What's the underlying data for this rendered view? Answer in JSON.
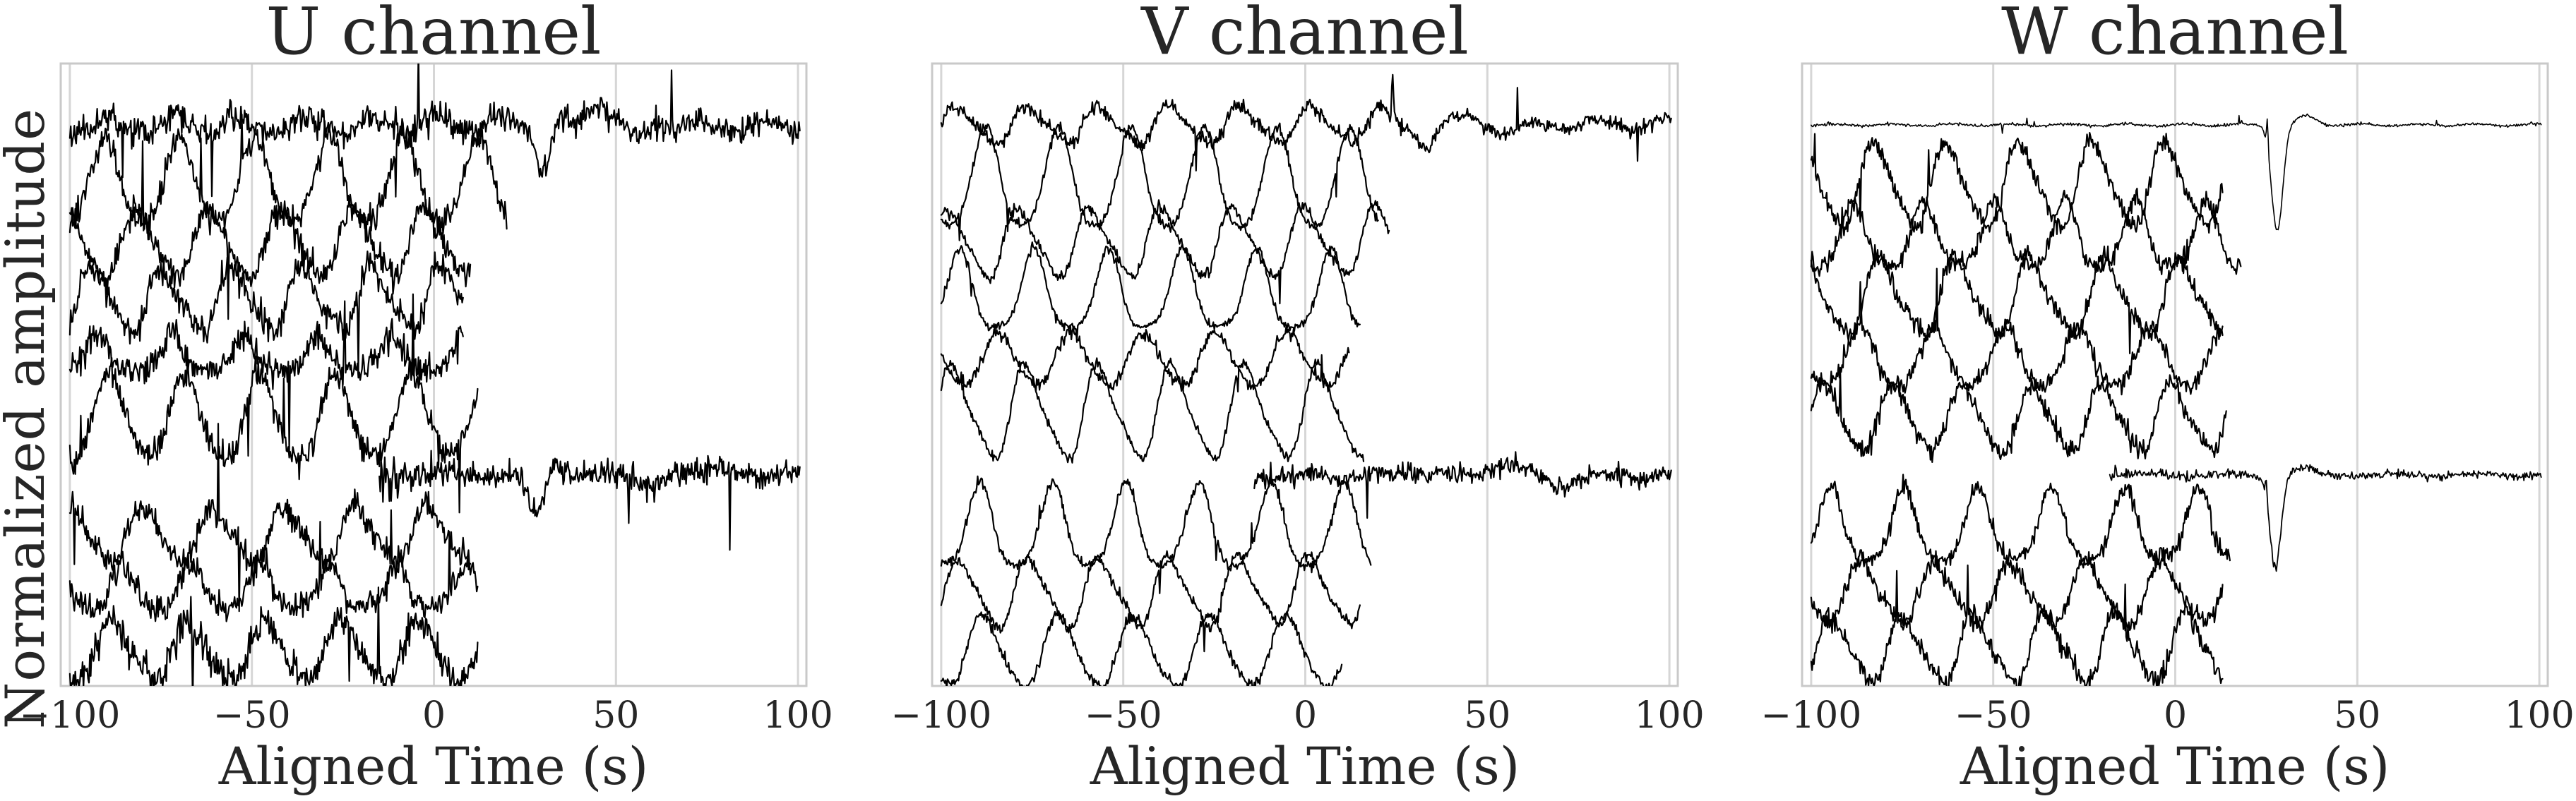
{
  "chart_data": {
    "type": "line",
    "description": "Three-panel figure of stacked normalized waveform traces aligned in time",
    "xlabel": "Aligned Time (s)",
    "ylabel": "Normalized amplitude",
    "xlim": [
      -102.5,
      102.3
    ],
    "x_ticks": [
      -100,
      -50,
      0,
      50,
      100
    ],
    "x_tick_labels": [
      "−100",
      "−50",
      "0",
      "50",
      "100"
    ],
    "grid": "vertical-only",
    "legend": "none",
    "y_tick_labels": "none",
    "n_traces_per_panel": 10,
    "trace_color": "#000000",
    "grid_color": "#d6d6d6",
    "spine_color": "#c9c9c9",
    "text_color": "#262626",
    "background_color": "#ffffff",
    "subplots": [
      {
        "id": "U",
        "title": "U channel",
        "noise_profile": "high",
        "traces": [
          {
            "row": 0,
            "kind": "osc",
            "t0": -100,
            "t1": 100.5,
            "period": 18,
            "amp": 0.14,
            "phase": 1.3,
            "noise": 0.12,
            "post_t": 25,
            "post_scale": 0.5,
            "features": [
              [
                30,
                -0.8,
                2.5
              ],
              [
                45,
                0.38,
                4
              ],
              [
                56,
                -0.22,
                3
              ]
            ]
          },
          {
            "row": 1,
            "kind": "osc",
            "t0": -100,
            "t1": 20,
            "period": 20.5,
            "amp": 0.72,
            "phase": 4.1,
            "noise": 0.12
          },
          {
            "row": 2,
            "kind": "osc",
            "t0": -100,
            "t1": 10,
            "period": 19.8,
            "amp": 0.55,
            "phase": 2.2,
            "noise": 0.12
          },
          {
            "row": 3,
            "kind": "osc",
            "t0": -100,
            "t1": 8,
            "period": 19.2,
            "amp": 0.5,
            "phase": 0.7,
            "noise": 0.12
          },
          {
            "row": 4,
            "kind": "osc",
            "t0": -100,
            "t1": 8,
            "period": 20.2,
            "amp": 0.3,
            "phase": 5.2,
            "noise": 0.13
          },
          {
            "row": 5,
            "kind": "osc",
            "t0": -100,
            "t1": 12,
            "period": 20.8,
            "amp": 0.72,
            "phase": 3.4,
            "noise": 0.12
          },
          {
            "row": 6,
            "kind": "flat",
            "t0": -15,
            "t1": 100.5,
            "noise": 0.11,
            "burst": true,
            "wobble": [
              0.06,
              24,
              1.1
            ],
            "features": [
              [
                28,
                -0.75,
                2.8
              ],
              [
                34,
                0.2,
                3
              ],
              [
                58,
                -0.15,
                5
              ],
              [
                80,
                0.1,
                6
              ]
            ]
          },
          {
            "row": 7,
            "kind": "osc",
            "t0": -100,
            "t1": 10,
            "period": 19.6,
            "amp": 0.45,
            "phase": 2.0,
            "noise": 0.12
          },
          {
            "row": 8,
            "kind": "osc",
            "t0": -100,
            "t1": 12,
            "period": 18.8,
            "amp": 0.35,
            "phase": 4.9,
            "noise": 0.12
          },
          {
            "row": 9,
            "kind": "osc",
            "t0": -100,
            "t1": 12,
            "period": 21,
            "amp": 0.5,
            "phase": 2.8,
            "noise": 0.14
          }
        ]
      },
      {
        "id": "V",
        "title": "V channel",
        "noise_profile": "low",
        "traces": [
          {
            "row": 0,
            "kind": "osc",
            "t0": -100,
            "t1": 100.5,
            "period": 19.5,
            "amp": 0.3,
            "phase": 0.9,
            "noise": 0.06,
            "post_t": 24,
            "post_scale": 0.3,
            "features": [
              [
                24,
                0.7,
                0.35
              ],
              [
                33,
                -0.35,
                3
              ],
              [
                45,
                0.12,
                4
              ],
              [
                57,
                -0.18,
                4
              ]
            ]
          },
          {
            "row": 1,
            "kind": "osc",
            "t0": -100,
            "t1": 20,
            "period": 20,
            "amp": 0.85,
            "phase": 4.0,
            "noise": 0.04
          },
          {
            "row": 2,
            "kind": "osc",
            "t0": -100,
            "t1": 23,
            "period": 19.6,
            "amp": 0.55,
            "phase": 1.5,
            "noise": 0.045
          },
          {
            "row": 3,
            "kind": "osc",
            "t0": -100,
            "t1": 15,
            "period": 20.4,
            "amp": 0.65,
            "phase": 5.7,
            "noise": 0.04
          },
          {
            "row": 4,
            "kind": "osc",
            "t0": -100,
            "t1": 12,
            "period": 19.9,
            "amp": 0.45,
            "phase": 3.0,
            "noise": 0.05
          },
          {
            "row": 5,
            "kind": "osc",
            "t0": -100,
            "t1": 16,
            "period": 20.1,
            "amp": 0.75,
            "phase": 0.3,
            "noise": 0.04
          },
          {
            "row": 6,
            "kind": "flat",
            "t0": -14,
            "t1": 100.5,
            "noise": 0.08,
            "burst": true,
            "wobble": [
              0.055,
              21,
              2.2
            ],
            "features": [
              [
                30,
                0.1,
                4
              ],
              [
                55,
                0.18,
                5
              ],
              [
                70,
                -0.16,
                5
              ]
            ]
          },
          {
            "row": 7,
            "kind": "osc",
            "t0": -100,
            "t1": 18,
            "period": 20,
            "amp": 0.7,
            "phase": 4.5,
            "noise": 0.045
          },
          {
            "row": 8,
            "kind": "osc",
            "t0": -100,
            "t1": 15,
            "period": 19.2,
            "amp": 0.55,
            "phase": 1.1,
            "noise": 0.045
          },
          {
            "row": 9,
            "kind": "osc",
            "t0": -100,
            "t1": 10,
            "period": 20.8,
            "amp": 0.6,
            "phase": 3.1,
            "noise": 0.05
          }
        ]
      },
      {
        "id": "W",
        "title": "W channel",
        "noise_profile": "medium",
        "traces": [
          {
            "row": 0,
            "kind": "flat",
            "t0": -100,
            "t1": 100.5,
            "noise": 0.012,
            "lw": 1.6,
            "wobble": [
              0.018,
              16,
              0.6
            ],
            "features": [
              [
                25.3,
                0.5,
                0.3
              ],
              [
                28,
                -1.8,
                2.2
              ],
              [
                36,
                0.15,
                4
              ]
            ]
          },
          {
            "row": 1,
            "kind": "osc",
            "t0": -100,
            "t1": 13,
            "period": 20,
            "amp": 0.7,
            "phase": 2.3,
            "noise": 0.08
          },
          {
            "row": 2,
            "kind": "osc",
            "t0": -100,
            "t1": 18,
            "period": 19.4,
            "amp": 0.55,
            "phase": 5.1,
            "noise": 0.085
          },
          {
            "row": 3,
            "kind": "osc",
            "t0": -100,
            "t1": 13,
            "period": 20.6,
            "amp": 0.6,
            "phase": 1.0,
            "noise": 0.08
          },
          {
            "row": 4,
            "kind": "osc",
            "t0": -100,
            "t1": 13,
            "period": 19.9,
            "amp": 0.5,
            "phase": 3.7,
            "noise": 0.09
          },
          {
            "row": 5,
            "kind": "osc",
            "t0": -100,
            "t1": 14,
            "period": 19.1,
            "amp": 0.55,
            "phase": 1.8,
            "noise": 0.085
          },
          {
            "row": 6,
            "kind": "flat",
            "t0": -18,
            "t1": 100.5,
            "noise": 0.035,
            "lw": 1.8,
            "burst": true,
            "wobble": [
              0.03,
              23,
              4.1
            ],
            "features": [
              [
                25,
                0.4,
                0.35
              ],
              [
                27.5,
                -1.55,
                2.2
              ],
              [
                35,
                0.12,
                4
              ]
            ]
          },
          {
            "row": 7,
            "kind": "osc",
            "t0": -100,
            "t1": 15,
            "period": 20.2,
            "amp": 0.6,
            "phase": 5.9,
            "noise": 0.08
          },
          {
            "row": 8,
            "kind": "osc",
            "t0": -100,
            "t1": 13,
            "period": 20.7,
            "amp": 0.5,
            "phase": 2.6,
            "noise": 0.085
          },
          {
            "row": 9,
            "kind": "osc",
            "t0": -100,
            "t1": 13,
            "period": 19.5,
            "amp": 0.55,
            "phase": 0.4,
            "noise": 0.09
          }
        ]
      }
    ]
  }
}
